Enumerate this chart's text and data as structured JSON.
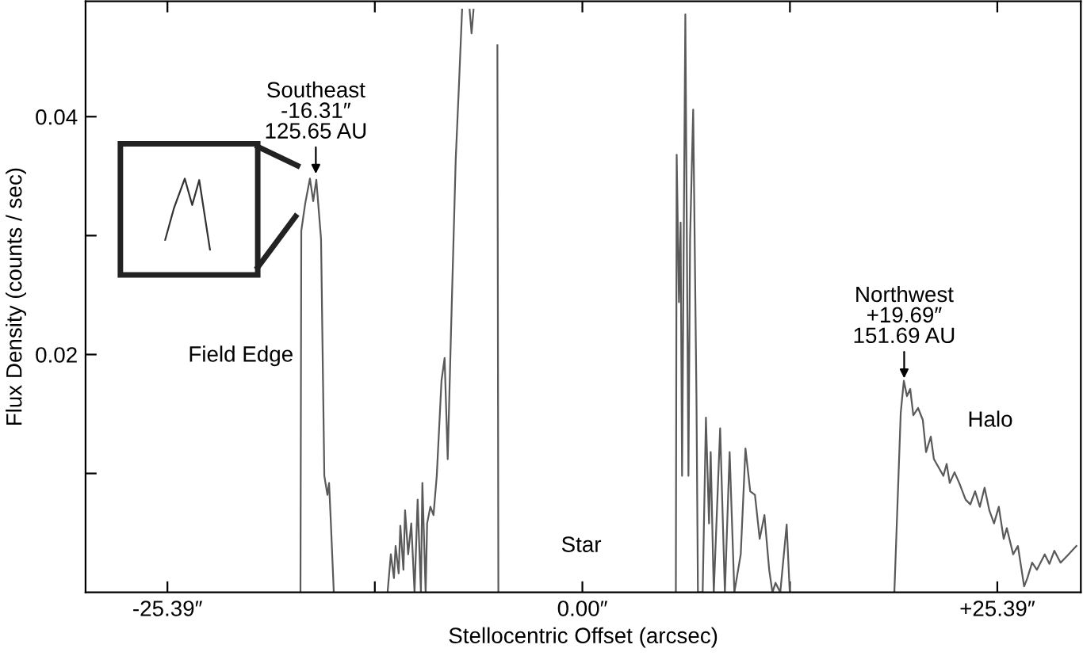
{
  "chart_data": {
    "type": "line",
    "xlabel": "Stellocentric Offset (arcsec)",
    "ylabel": "Flux Density (counts / sec)",
    "x": [
      -17.25,
      -17.2,
      -16.96,
      -16.67,
      -16.47,
      -16.28,
      -15.99,
      -15.79,
      -15.6,
      -15.5,
      -15.41,
      -15.21,
      -14.0,
      -11.92,
      -11.72,
      -11.53,
      -11.43,
      -11.24,
      -11.14,
      -10.95,
      -10.85,
      -10.66,
      -10.47,
      -10.27,
      -10.08,
      -9.88,
      -9.79,
      -9.59,
      -9.5,
      -9.3,
      -9.11,
      -8.91,
      -8.62,
      -8.43,
      -8.24,
      -8.04,
      -7.75,
      -7.56,
      -7.36,
      -7.0,
      -6.9,
      -6.78,
      -6.66,
      -6.0,
      -5.2,
      -5.14,
      4.0,
      5.72,
      5.77,
      5.91,
      6.01,
      6.1,
      6.3,
      6.49,
      6.59,
      6.78,
      6.98,
      7.07,
      7.36,
      7.56,
      7.75,
      7.85,
      8.04,
      8.43,
      8.72,
      9.01,
      9.3,
      9.69,
      9.98,
      10.27,
      10.56,
      10.85,
      11.14,
      11.43,
      11.63,
      11.82,
      12.11,
      12.5,
      12.69,
      13.5,
      19.09,
      19.48,
      19.67,
      19.86,
      20.06,
      20.25,
      20.54,
      20.83,
      21.03,
      21.32,
      21.51,
      21.8,
      22.09,
      22.29,
      22.48,
      22.77,
      23.06,
      23.45,
      23.74,
      24.03,
      24.32,
      24.61,
      24.9,
      25.19,
      25.48,
      25.78,
      25.97,
      26.36,
      26.65,
      27.03,
      27.23,
      27.52,
      27.81,
      28.29,
      28.58,
      28.88,
      29.26,
      29.75,
      30.23
    ],
    "series": [
      {
        "color": "#5a5a5a",
        "values": [
          0,
          0.0304,
          0.0327,
          0.0348,
          0.0329,
          0.0347,
          0.0297,
          0.0098,
          0.0082,
          0.0092,
          0.0065,
          0,
          null,
          0,
          0.0032,
          0.0012,
          0.0039,
          0.0016,
          0.0056,
          0.0019,
          0.0069,
          0.0032,
          0.0058,
          0,
          0.0078,
          0,
          0.0092,
          0,
          0.0058,
          0.0072,
          0.0065,
          0.0098,
          0.0178,
          0.0197,
          0.0112,
          0.0218,
          0.0364,
          0.0424,
          0.049,
          null,
          0.049,
          0.047,
          0.049,
          null,
          0.046,
          0,
          null,
          0,
          0.0368,
          0.0244,
          0.0311,
          0.0098,
          0.0486,
          0.0098,
          0.0297,
          0.0406,
          0.0165,
          0,
          0,
          0.0147,
          0.0058,
          0.0118,
          0,
          0.0138,
          0,
          0.0118,
          0,
          0.0032,
          0.0121,
          0.0085,
          0.0082,
          0.0045,
          0.0065,
          0.0019,
          0,
          0.0008,
          0,
          0.0057,
          0,
          null,
          0,
          0.0151,
          0.0178,
          0.0165,
          0.0171,
          0.0149,
          0.0155,
          0.0145,
          0.0118,
          0.0131,
          0.0112,
          0.0105,
          0.0098,
          0.0108,
          0.0092,
          0.0101,
          0.0092,
          0.0078,
          0.0074,
          0.0085,
          0.0072,
          0.0088,
          0.0069,
          0.0058,
          0.0072,
          0.0045,
          0.0054,
          0.0032,
          0.0039,
          0.0005,
          0.0012,
          0.0025,
          0.0019,
          0.0032,
          0.0024,
          0.0035,
          0.0025,
          0.0032,
          0.0039
        ]
      }
    ],
    "xlim": [
      -30.4,
      30.5
    ],
    "ylim": [
      0,
      0.0497
    ],
    "xticks": [
      {
        "value": -25.39,
        "label": "-25.39″"
      },
      {
        "value": -12.7,
        "label": null
      },
      {
        "value": 0,
        "label": "0.00″"
      },
      {
        "value": 12.7,
        "label": null
      },
      {
        "value": 25.39,
        "label": "+25.39″"
      }
    ],
    "yticks": [
      {
        "value": 0.01,
        "label": null
      },
      0.02,
      {
        "value": 0.03,
        "label": null
      },
      0.04
    ],
    "marker": "none",
    "line_style": "solid",
    "grid": false,
    "annotations": [
      {
        "text": "Southeast\n-16.31″\n125.65 AU",
        "x": -16.31,
        "y": 0.0352
      },
      {
        "text": "Northwest\n+19.69″\n151.69 AU",
        "x": 19.69,
        "y": 0.018
      },
      "Field Edge",
      "Star",
      "Halo"
    ]
  }
}
